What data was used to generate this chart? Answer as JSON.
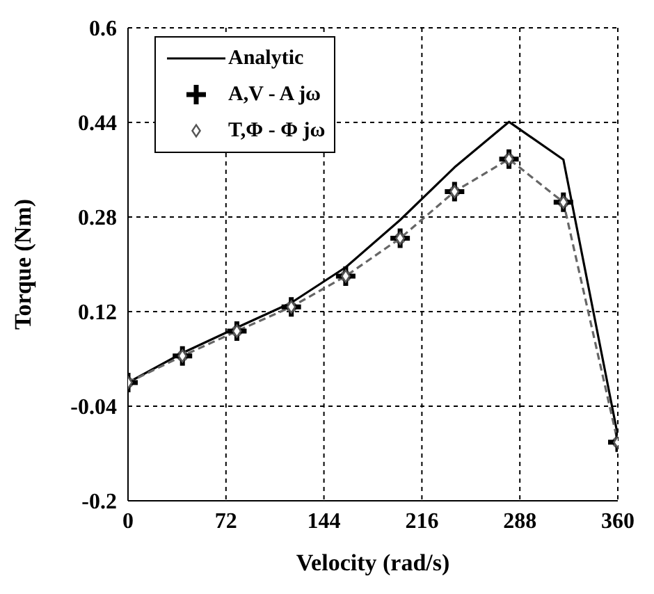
{
  "chart_data": {
    "type": "line",
    "xlabel": "Velocity (rad/s)",
    "ylabel": "Torque (Nm)",
    "x": [
      0,
      40,
      80,
      120,
      160,
      200,
      240,
      280,
      320,
      360
    ],
    "series": [
      {
        "name": "Analytic",
        "color": "#000000",
        "line_style": "solid",
        "marker": "none",
        "values": [
          0.0,
          0.05,
          0.093,
          0.135,
          0.195,
          0.275,
          0.364,
          0.441,
          0.377,
          -0.09
        ]
      },
      {
        "color": "#666666",
        "line_style": "dashed",
        "marker": "circle",
        "values": [
          0.0,
          0.045,
          0.087,
          0.128,
          0.18,
          0.244,
          0.323,
          0.378,
          0.305,
          -0.101
        ]
      },
      {
        "name": "A,V - A jω",
        "color": "#000000",
        "type": "scatter",
        "marker": "cross",
        "values": [
          0.0,
          0.045,
          0.087,
          0.128,
          0.18,
          0.244,
          0.323,
          0.378,
          0.305,
          -0.101
        ]
      },
      {
        "name": "T,Φ - Φ jω",
        "color": "#555555",
        "type": "scatter",
        "marker": "diamond",
        "values": [
          0.0,
          0.045,
          0.087,
          0.128,
          0.18,
          0.244,
          0.323,
          0.378,
          0.305,
          -0.101
        ]
      }
    ],
    "xlim": [
      0,
      360
    ],
    "xticks": [
      0,
      72,
      144,
      216,
      288,
      360
    ],
    "ylim": [
      -0.2,
      0.6
    ],
    "yticks": [
      -0.2,
      -0.04,
      0.12,
      0.28,
      0.44,
      0.6
    ],
    "grid": true,
    "legend": "top left"
  }
}
